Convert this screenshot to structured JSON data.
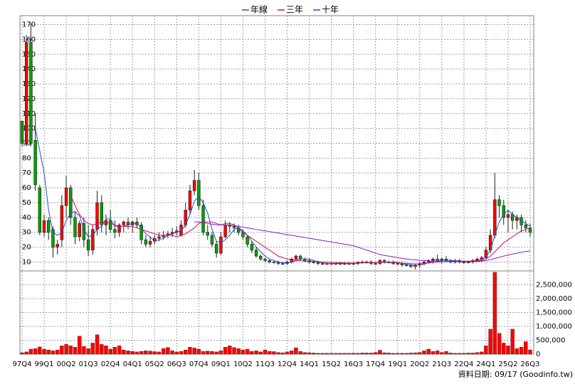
{
  "chart_data": [
    {
      "type": "candlestick",
      "categories": [
        "97Q4",
        null,
        null,
        null,
        null,
        "99Q1",
        null,
        null,
        null,
        null,
        "00Q2",
        null,
        null,
        null,
        null,
        "01Q3",
        null,
        null,
        null,
        null,
        "02Q4",
        null,
        null,
        null,
        null,
        "04Q1",
        null,
        null,
        null,
        null,
        "05Q2",
        null,
        null,
        null,
        null,
        "06Q3",
        null,
        null,
        null,
        null,
        "07Q4",
        null,
        null,
        null,
        null,
        "09Q1",
        null,
        null,
        null,
        null,
        "10Q2",
        null,
        null,
        null,
        null,
        "11Q3",
        null,
        null,
        null,
        null,
        "12Q4",
        null,
        null,
        null,
        null,
        "14Q1",
        null,
        null,
        null,
        null,
        "15Q2",
        null,
        null,
        null,
        null,
        "16Q3",
        null,
        null,
        null,
        null,
        "17Q4",
        null,
        null,
        null,
        null,
        "19Q1",
        null,
        null,
        null,
        null,
        "20Q2",
        null,
        null,
        null,
        null,
        "21Q3",
        null,
        null,
        null,
        null,
        "22Q4",
        null,
        null,
        null,
        null,
        "24Q1",
        null,
        null,
        null,
        null,
        "25Q2",
        null,
        null,
        null,
        null,
        "26Q3"
      ],
      "open": [
        105,
        90,
        158,
        92,
        60,
        30,
        38,
        32,
        20,
        25,
        48,
        60,
        40,
        27,
        36,
        25,
        18,
        32,
        50,
        35,
        38,
        32,
        30,
        35,
        37,
        35,
        37,
        35,
        25,
        22,
        24,
        26,
        27,
        28,
        29,
        30,
        28,
        35,
        45,
        58,
        65,
        48,
        30,
        28,
        22,
        16,
        27,
        35,
        34,
        33,
        30,
        27,
        22,
        18,
        14,
        12,
        11,
        10,
        10,
        9,
        9,
        10,
        12,
        14,
        12,
        11,
        10,
        10,
        9,
        9,
        9,
        9,
        9,
        9,
        9,
        9,
        9,
        10,
        10,
        10,
        9,
        9,
        11,
        10,
        10,
        9,
        9,
        8,
        8,
        7,
        8,
        9,
        10,
        11,
        12,
        11,
        12,
        11,
        10,
        11,
        10,
        10,
        10,
        11,
        12,
        13,
        18,
        28,
        52,
        48,
        40,
        42,
        38,
        40,
        35,
        33
      ],
      "high": [
        105,
        163,
        171,
        110,
        62,
        42,
        40,
        34,
        25,
        55,
        68,
        62,
        44,
        38,
        40,
        35,
        35,
        58,
        55,
        42,
        45,
        38,
        36,
        38,
        40,
        38,
        40,
        37,
        28,
        27,
        28,
        30,
        31,
        31,
        33,
        34,
        38,
        50,
        62,
        72,
        70,
        52,
        35,
        30,
        24,
        30,
        38,
        37,
        36,
        35,
        32,
        28,
        24,
        20,
        15,
        13,
        12,
        11,
        11,
        10,
        11,
        13,
        15,
        15,
        13,
        12,
        11,
        11,
        10,
        10,
        10,
        10,
        10,
        10,
        10,
        10,
        10,
        11,
        11,
        11,
        10,
        12,
        12,
        11,
        11,
        10,
        10,
        9,
        9,
        9,
        10,
        11,
        12,
        13,
        15,
        13,
        14,
        12,
        12,
        12,
        11,
        11,
        12,
        13,
        14,
        20,
        32,
        70,
        55,
        52,
        45,
        44,
        42,
        42,
        38,
        36
      ],
      "low": [
        88,
        88,
        88,
        58,
        28,
        27,
        25,
        13,
        15,
        20,
        40,
        35,
        22,
        24,
        20,
        14,
        15,
        28,
        30,
        28,
        30,
        26,
        27,
        30,
        32,
        30,
        33,
        22,
        20,
        20,
        22,
        24,
        25,
        26,
        27,
        28,
        27,
        33,
        42,
        55,
        45,
        28,
        25,
        20,
        13,
        15,
        26,
        30,
        30,
        28,
        25,
        20,
        16,
        13,
        11,
        10,
        9,
        9,
        8,
        8,
        8,
        9,
        11,
        11,
        10,
        9,
        9,
        8,
        8,
        8,
        8,
        8,
        8,
        8,
        8,
        8,
        8,
        9,
        9,
        8,
        8,
        8,
        9,
        9,
        8,
        8,
        7,
        7,
        6,
        5,
        6,
        8,
        9,
        9,
        10,
        9,
        10,
        9,
        9,
        9,
        9,
        9,
        9,
        10,
        11,
        12,
        16,
        26,
        40,
        35,
        30,
        32,
        32,
        30,
        30,
        27
      ],
      "close": [
        90,
        158,
        90,
        62,
        30,
        38,
        30,
        20,
        22,
        48,
        60,
        40,
        27,
        36,
        25,
        18,
        32,
        50,
        35,
        38,
        32,
        30,
        35,
        37,
        35,
        37,
        35,
        25,
        22,
        24,
        26,
        27,
        28,
        29,
        30,
        31,
        35,
        45,
        58,
        65,
        48,
        30,
        28,
        22,
        16,
        27,
        35,
        34,
        33,
        30,
        27,
        22,
        18,
        14,
        12,
        11,
        10,
        10,
        9,
        9,
        10,
        12,
        14,
        12,
        11,
        10,
        10,
        9,
        9,
        9,
        9,
        9,
        9,
        9,
        9,
        9,
        10,
        10,
        10,
        9,
        9,
        11,
        10,
        10,
        9,
        9,
        8,
        8,
        7,
        8,
        9,
        10,
        11,
        12,
        11,
        12,
        11,
        10,
        11,
        10,
        10,
        10,
        11,
        12,
        13,
        18,
        28,
        52,
        48,
        40,
        42,
        38,
        40,
        35,
        33,
        30
      ],
      "up_color": "#ff0000",
      "down_color": "#00a000",
      "series": [
        {
          "name": "年線",
          "color": "#2050d0",
          "values": [
            null,
            null,
            null,
            100,
            85,
            70,
            45,
            30,
            28,
            30,
            38,
            43,
            44,
            41,
            32,
            27,
            28,
            32,
            34,
            39,
            39,
            34,
            34,
            34,
            35,
            36,
            36,
            33,
            29,
            27,
            24,
            25,
            26,
            28,
            29,
            30,
            31,
            35,
            42,
            51,
            54,
            50,
            43,
            32,
            24,
            23,
            25,
            28,
            32,
            33,
            31,
            28,
            24,
            20,
            17,
            14,
            12,
            11,
            10,
            9.5,
            9.5,
            10,
            11,
            12,
            12,
            12,
            11,
            10,
            9.5,
            9,
            9,
            9,
            9,
            9,
            9,
            9,
            9.2,
            9.5,
            9.7,
            9.8,
            9.6,
            10,
            10,
            10,
            10,
            9.7,
            9,
            8.5,
            8,
            7.7,
            8,
            8.5,
            9.5,
            10.5,
            11,
            11.5,
            11.5,
            11,
            11,
            10.5,
            10.3,
            10.2,
            10.3,
            10.8,
            11.5,
            13.5,
            18,
            28,
            37,
            42,
            45,
            42,
            40,
            38,
            36,
            34
          ]
        },
        {
          "name": "三年",
          "color": "#d0105a",
          "values": [
            null,
            null,
            null,
            null,
            null,
            null,
            null,
            null,
            null,
            null,
            null,
            55,
            48,
            42,
            38,
            36,
            35,
            36,
            37,
            37,
            36,
            35,
            34,
            34,
            34,
            34,
            33,
            32,
            31,
            30,
            29,
            28,
            28,
            28,
            28,
            27,
            28,
            29,
            31,
            33,
            36,
            37,
            37,
            37,
            36,
            35,
            36,
            36,
            35,
            33,
            30,
            28,
            26,
            24,
            22,
            20,
            18,
            16,
            14,
            13,
            12,
            11.5,
            11,
            11,
            10.5,
            10.5,
            10.5,
            10.3,
            10,
            10,
            9.8,
            9.6,
            9.5,
            9.4,
            9.3,
            9.3,
            9.3,
            9.4,
            9.5,
            9.6,
            9.7,
            9.8,
            9.8,
            9.8,
            9.7,
            9.5,
            9.3,
            9.1,
            8.9,
            8.8,
            8.8,
            9,
            9.3,
            9.7,
            10,
            10.2,
            10.4,
            10.5,
            10.6,
            10.6,
            10.6,
            10.6,
            10.7,
            10.8,
            11,
            12,
            14,
            17,
            20,
            23,
            25,
            27,
            29,
            31,
            32,
            33
          ]
        },
        {
          "name": "十年",
          "color": "#8020d0",
          "values": [
            null,
            null,
            null,
            null,
            null,
            null,
            null,
            null,
            null,
            null,
            null,
            null,
            null,
            null,
            null,
            null,
            null,
            null,
            null,
            null,
            null,
            null,
            null,
            null,
            null,
            null,
            null,
            null,
            null,
            null,
            null,
            null,
            null,
            null,
            null,
            null,
            null,
            null,
            null,
            37,
            37,
            36.5,
            36,
            35.5,
            35,
            35,
            35,
            35,
            34.5,
            34,
            33.5,
            33,
            32.5,
            32,
            31.5,
            31,
            30.5,
            30,
            29.5,
            29,
            28.5,
            28,
            27.5,
            27,
            26.5,
            26,
            25.5,
            25,
            24.5,
            24,
            23.5,
            23,
            22.5,
            22,
            21.5,
            21,
            20,
            19,
            18,
            17,
            16,
            15,
            14.5,
            14,
            13.5,
            13,
            12.5,
            12,
            11.7,
            11.5,
            11.2,
            11,
            10.8,
            10.6,
            10.5,
            10.4,
            10.3,
            10.2,
            10.2,
            10.2,
            10.2,
            10.2,
            10.3,
            10.4,
            10.6,
            11,
            11.6,
            12.4,
            13.2,
            14,
            14.7,
            15.4,
            16,
            16.6,
            17.1,
            17.5
          ]
        }
      ],
      "ylim": [
        4,
        176
      ],
      "yticks": [
        10,
        20,
        30,
        40,
        50,
        60,
        70,
        80,
        90,
        100,
        110,
        120,
        130,
        140,
        150,
        160,
        170
      ],
      "grid": true,
      "legend": "top"
    },
    {
      "type": "bar",
      "values": [
        50000,
        80000,
        180000,
        200000,
        260000,
        180000,
        150000,
        120000,
        150000,
        300000,
        350000,
        300000,
        250000,
        650000,
        280000,
        200000,
        400000,
        700000,
        350000,
        300000,
        180000,
        250000,
        300000,
        150000,
        120000,
        100000,
        80000,
        100000,
        120000,
        110000,
        90000,
        80000,
        200000,
        240000,
        120000,
        80000,
        100000,
        150000,
        250000,
        220000,
        180000,
        100000,
        110000,
        100000,
        80000,
        120000,
        250000,
        300000,
        240000,
        200000,
        150000,
        180000,
        100000,
        120000,
        80000,
        150000,
        100000,
        90000,
        60000,
        50000,
        80000,
        120000,
        230000,
        100000,
        60000,
        50000,
        40000,
        30000,
        30000,
        30000,
        30000,
        30000,
        30000,
        30000,
        30000,
        30000,
        30000,
        40000,
        40000,
        40000,
        60000,
        140000,
        50000,
        40000,
        30000,
        30000,
        30000,
        30000,
        40000,
        50000,
        60000,
        120000,
        180000,
        100000,
        120000,
        60000,
        100000,
        40000,
        30000,
        30000,
        30000,
        40000,
        40000,
        60000,
        80000,
        300000,
        900000,
        2950000,
        750000,
        400000,
        300000,
        900000,
        200000,
        250000,
        450000,
        150000
      ],
      "color": "#ff0000",
      "ylim": [
        0,
        3000000
      ],
      "yticks": [
        0,
        {
          "value": 500000,
          "label": "500,000"
        },
        {
          "value": 1000000,
          "label": "1,000,000"
        },
        {
          "value": 1500000,
          "label": "1,500,000"
        },
        {
          "value": 2000000,
          "label": "2,000,000"
        },
        {
          "value": 2500000,
          "label": "2,500,000"
        }
      ],
      "grid": true
    }
  ],
  "footer": "資料日期: 09/17  (Goodinfo.tw)"
}
